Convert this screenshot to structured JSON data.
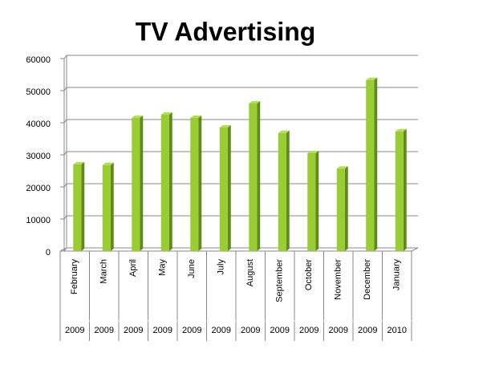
{
  "chart_data": {
    "type": "bar",
    "title": "TV Advertising",
    "categories": [
      "February",
      "March",
      "April",
      "May",
      "June",
      "July",
      "August",
      "September",
      "October",
      "November",
      "December",
      "January"
    ],
    "years": [
      "2009",
      "2009",
      "2009",
      "2009",
      "2009",
      "2009",
      "2009",
      "2009",
      "2009",
      "2009",
      "2009",
      "2010"
    ],
    "values": [
      27000,
      26800,
      41500,
      42500,
      41500,
      38500,
      46000,
      36800,
      30500,
      25700,
      53300,
      37300
    ],
    "color": "#9acd32",
    "ylim": [
      0,
      60000
    ],
    "yticks": [
      0,
      10000,
      20000,
      30000,
      40000,
      50000,
      60000
    ],
    "grid": true
  }
}
